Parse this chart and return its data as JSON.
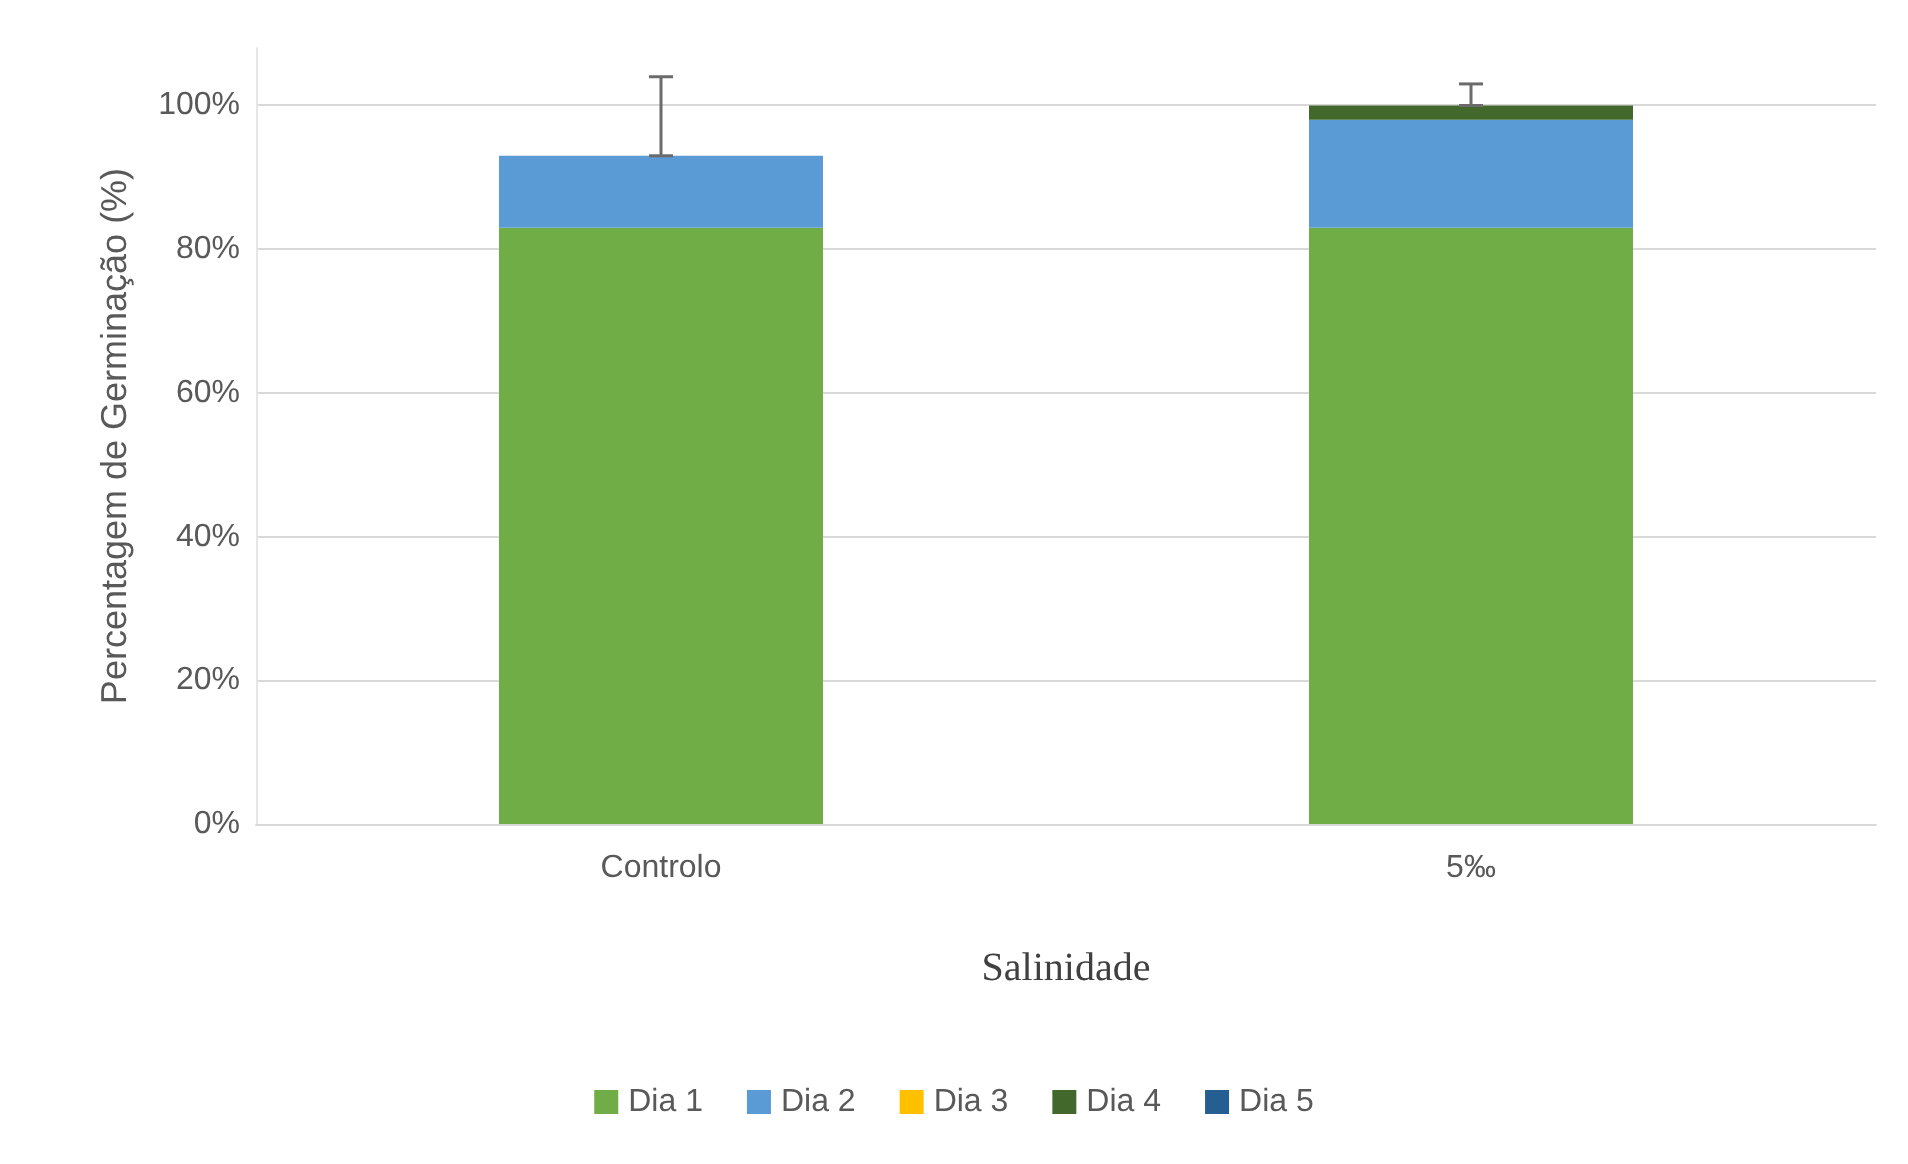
{
  "chart_data": {
    "type": "bar",
    "stacked": true,
    "xlabel": "Salinidade",
    "ylabel": "Percentagem de Germinação (%)",
    "categories": [
      "Controlo",
      "5‰"
    ],
    "series": [
      {
        "name": "Dia 1",
        "color": "#70ad47",
        "values": [
          83,
          83
        ]
      },
      {
        "name": "Dia 2",
        "color": "#5b9bd5",
        "values": [
          10,
          15
        ]
      },
      {
        "name": "Dia 3",
        "color": "#ffc000",
        "values": [
          0,
          0
        ]
      },
      {
        "name": "Dia 4",
        "color": "#43682b",
        "values": [
          0,
          2
        ]
      },
      {
        "name": "Dia 5",
        "color": "#255e91",
        "values": [
          0,
          0
        ],
        "errors": [
          [
            93,
            104
          ],
          [
            100,
            103
          ]
        ]
      }
    ],
    "ylim": [
      0,
      108
    ],
    "yticks": [
      {
        "value": 0,
        "label": "0%"
      },
      {
        "value": 20,
        "label": "20%"
      },
      {
        "value": 40,
        "label": "40%"
      },
      {
        "value": 60,
        "label": "60%"
      },
      {
        "value": 80,
        "label": "80%"
      },
      {
        "value": 100,
        "label": "100%"
      }
    ],
    "grid": "y",
    "legend": "bottom"
  }
}
